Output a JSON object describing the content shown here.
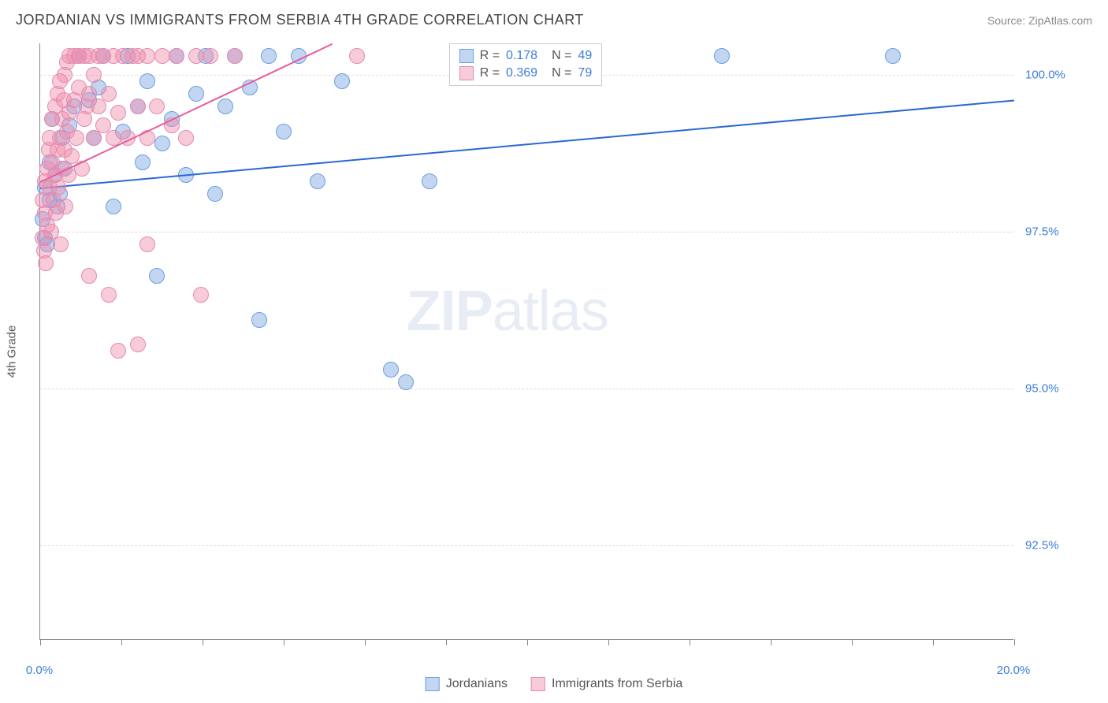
{
  "title": "JORDANIAN VS IMMIGRANTS FROM SERBIA 4TH GRADE CORRELATION CHART",
  "source": "Source: ZipAtlas.com",
  "watermark_bold": "ZIP",
  "watermark_rest": "atlas",
  "chart": {
    "type": "scatter",
    "y_axis_title": "4th Grade",
    "xlim": [
      0,
      20
    ],
    "ylim": [
      91,
      100.5
    ],
    "x_ticks": [
      0,
      1.67,
      3.33,
      5,
      6.67,
      8.33,
      10,
      11.67,
      13.33,
      15,
      16.67,
      18.33,
      20
    ],
    "x_tick_labels": {
      "0": "0.0%",
      "20": "20.0%"
    },
    "y_ticks": [
      92.5,
      95.0,
      97.5,
      100.0
    ],
    "y_tick_labels": [
      "92.5%",
      "95.0%",
      "97.5%",
      "100.0%"
    ],
    "grid_color": "#dddddd",
    "axis_color": "#888888",
    "background_color": "#ffffff",
    "series": [
      {
        "name": "Jordanians",
        "fill": "rgba(120,165,225,0.45)",
        "stroke": "#6a9fe0",
        "marker_radius": 10,
        "points": [
          [
            0.05,
            97.7
          ],
          [
            0.1,
            97.4
          ],
          [
            0.1,
            98.2
          ],
          [
            0.15,
            97.3
          ],
          [
            0.2,
            98.6
          ],
          [
            0.2,
            98.0
          ],
          [
            0.25,
            99.3
          ],
          [
            0.3,
            98.4
          ],
          [
            0.35,
            97.9
          ],
          [
            0.4,
            98.1
          ],
          [
            0.45,
            99.0
          ],
          [
            0.5,
            98.5
          ],
          [
            0.6,
            99.2
          ],
          [
            0.7,
            99.5
          ],
          [
            0.8,
            100.3
          ],
          [
            1.0,
            99.6
          ],
          [
            1.1,
            99.0
          ],
          [
            1.2,
            99.8
          ],
          [
            1.3,
            100.3
          ],
          [
            1.5,
            97.9
          ],
          [
            1.7,
            99.1
          ],
          [
            1.8,
            100.3
          ],
          [
            2.0,
            99.5
          ],
          [
            2.1,
            98.6
          ],
          [
            2.2,
            99.9
          ],
          [
            2.4,
            96.8
          ],
          [
            2.5,
            98.9
          ],
          [
            2.7,
            99.3
          ],
          [
            2.8,
            100.3
          ],
          [
            3.0,
            98.4
          ],
          [
            3.2,
            99.7
          ],
          [
            3.4,
            100.3
          ],
          [
            3.6,
            98.1
          ],
          [
            3.8,
            99.5
          ],
          [
            4.0,
            100.3
          ],
          [
            4.3,
            99.8
          ],
          [
            4.5,
            96.1
          ],
          [
            4.7,
            100.3
          ],
          [
            5.0,
            99.1
          ],
          [
            5.3,
            100.3
          ],
          [
            5.7,
            98.3
          ],
          [
            6.2,
            99.9
          ],
          [
            7.2,
            95.3
          ],
          [
            7.5,
            95.1
          ],
          [
            8.0,
            98.3
          ],
          [
            10.5,
            100.3
          ],
          [
            11.0,
            100.3
          ],
          [
            14.0,
            100.3
          ],
          [
            17.5,
            100.3
          ]
        ],
        "trend": {
          "x1": 0,
          "y1": 98.2,
          "x2": 20,
          "y2": 99.6,
          "color": "#2968d6",
          "width": 2
        },
        "legend": {
          "R": "0.178",
          "N": "49"
        }
      },
      {
        "name": "Immigrants from Serbia",
        "fill": "rgba(240,140,170,0.45)",
        "stroke": "#e68ab0",
        "marker_radius": 10,
        "points": [
          [
            0.05,
            97.4
          ],
          [
            0.05,
            98.0
          ],
          [
            0.08,
            97.2
          ],
          [
            0.1,
            97.8
          ],
          [
            0.1,
            98.3
          ],
          [
            0.12,
            97.0
          ],
          [
            0.15,
            98.5
          ],
          [
            0.15,
            97.6
          ],
          [
            0.18,
            98.8
          ],
          [
            0.2,
            98.2
          ],
          [
            0.2,
            99.0
          ],
          [
            0.22,
            97.5
          ],
          [
            0.25,
            98.6
          ],
          [
            0.25,
            99.3
          ],
          [
            0.28,
            98.0
          ],
          [
            0.3,
            98.4
          ],
          [
            0.3,
            99.5
          ],
          [
            0.32,
            97.8
          ],
          [
            0.35,
            98.8
          ],
          [
            0.35,
            99.7
          ],
          [
            0.38,
            98.2
          ],
          [
            0.4,
            99.0
          ],
          [
            0.4,
            99.9
          ],
          [
            0.42,
            97.3
          ],
          [
            0.45,
            98.5
          ],
          [
            0.45,
            99.3
          ],
          [
            0.48,
            99.6
          ],
          [
            0.5,
            98.8
          ],
          [
            0.5,
            100.0
          ],
          [
            0.52,
            97.9
          ],
          [
            0.55,
            99.1
          ],
          [
            0.55,
            100.2
          ],
          [
            0.58,
            98.4
          ],
          [
            0.6,
            99.4
          ],
          [
            0.6,
            100.3
          ],
          [
            0.65,
            98.7
          ],
          [
            0.7,
            99.6
          ],
          [
            0.7,
            100.3
          ],
          [
            0.75,
            99.0
          ],
          [
            0.8,
            99.8
          ],
          [
            0.8,
            100.3
          ],
          [
            0.85,
            98.5
          ],
          [
            0.9,
            99.3
          ],
          [
            0.9,
            100.3
          ],
          [
            0.95,
            99.5
          ],
          [
            1.0,
            99.7
          ],
          [
            1.0,
            100.3
          ],
          [
            1.1,
            99.0
          ],
          [
            1.1,
            100.0
          ],
          [
            1.2,
            99.5
          ],
          [
            1.2,
            100.3
          ],
          [
            1.3,
            99.2
          ],
          [
            1.3,
            100.3
          ],
          [
            1.4,
            99.7
          ],
          [
            1.5,
            99.0
          ],
          [
            1.5,
            100.3
          ],
          [
            1.6,
            99.4
          ],
          [
            1.7,
            100.3
          ],
          [
            1.8,
            99.0
          ],
          [
            1.9,
            100.3
          ],
          [
            2.0,
            99.5
          ],
          [
            2.0,
            100.3
          ],
          [
            2.2,
            99.0
          ],
          [
            2.2,
            100.3
          ],
          [
            2.4,
            99.5
          ],
          [
            2.5,
            100.3
          ],
          [
            2.7,
            99.2
          ],
          [
            2.8,
            100.3
          ],
          [
            3.0,
            99.0
          ],
          [
            3.2,
            100.3
          ],
          [
            3.3,
            96.5
          ],
          [
            3.5,
            100.3
          ],
          [
            1.6,
            95.6
          ],
          [
            2.0,
            95.7
          ],
          [
            2.2,
            97.3
          ],
          [
            1.4,
            96.5
          ],
          [
            1.0,
            96.8
          ],
          [
            6.5,
            100.3
          ],
          [
            4.0,
            100.3
          ]
        ],
        "trend": {
          "x1": 0,
          "y1": 98.3,
          "x2": 6.0,
          "y2": 100.5,
          "color": "#e85a9c",
          "width": 2
        },
        "legend": {
          "R": "0.369",
          "N": "79"
        }
      }
    ]
  },
  "legend_bottom": [
    {
      "label": "Jordanians",
      "fill": "rgba(120,165,225,0.45)",
      "stroke": "#6a9fe0"
    },
    {
      "label": "Immigrants from Serbia",
      "fill": "rgba(240,140,170,0.45)",
      "stroke": "#e68ab0"
    }
  ]
}
